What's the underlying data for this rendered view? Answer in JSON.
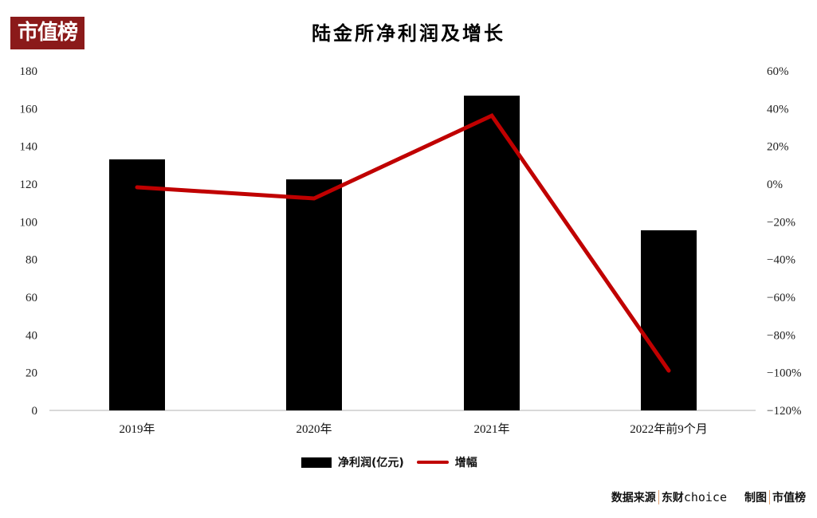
{
  "brand": {
    "logo_text": "市值榜",
    "logo_bg": "#8b1a1a"
  },
  "title": "陆金所净利润及增长",
  "legend": {
    "bar_label": "净利润(亿元)",
    "line_label": "增幅"
  },
  "footer": {
    "source_label": "数据来源",
    "source_name_cn": "东财",
    "source_name_en": "choice",
    "made_label": "制图",
    "made_by": "市值榜"
  },
  "chart_data": {
    "type": "bar+line",
    "title": "陆金所净利润及增长",
    "categories": [
      "2019年",
      "2020年",
      "2021年",
      "2022年前9个月"
    ],
    "series": [
      {
        "name": "净利润(亿元)",
        "type": "bar",
        "axis": "left",
        "color": "#000000",
        "values": [
          133.1,
          122.5,
          166.9,
          95.5
        ]
      },
      {
        "name": "增幅",
        "type": "line",
        "axis": "right",
        "color": "#c00000",
        "values": [
          -1.7,
          -7.6,
          36.3,
          -98.9
        ],
        "unit": "%"
      }
    ],
    "left_axis": {
      "ylim": [
        0,
        180
      ],
      "ticks": [
        "0",
        "20",
        "40",
        "60",
        "80",
        "100",
        "120",
        "140",
        "160",
        "180"
      ]
    },
    "right_axis": {
      "ylim": [
        -120,
        60
      ],
      "ticks": [
        "-120%",
        "-100%",
        "-80%",
        "-60%",
        "-40%",
        "-20%",
        "0%",
        "20%",
        "40%",
        "60%"
      ]
    },
    "grid": false,
    "legend_position": "bottom"
  }
}
